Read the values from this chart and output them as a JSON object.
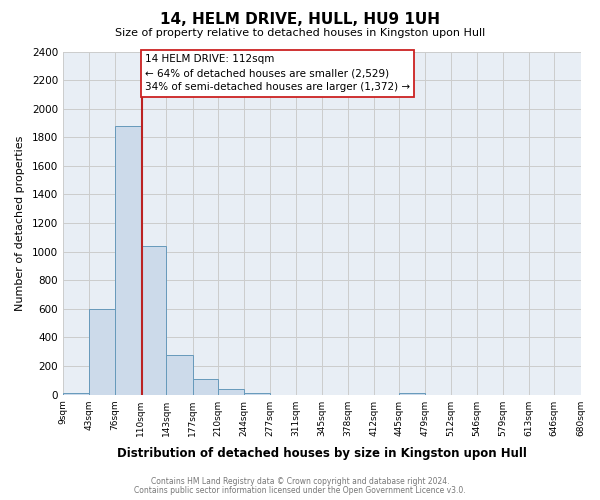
{
  "title": "14, HELM DRIVE, HULL, HU9 1UH",
  "subtitle": "Size of property relative to detached houses in Kingston upon Hull",
  "xlabel": "Distribution of detached houses by size in Kingston upon Hull",
  "ylabel": "Number of detached properties",
  "bin_labels": [
    "9sqm",
    "43sqm",
    "76sqm",
    "110sqm",
    "143sqm",
    "177sqm",
    "210sqm",
    "244sqm",
    "277sqm",
    "311sqm",
    "345sqm",
    "378sqm",
    "412sqm",
    "445sqm",
    "479sqm",
    "512sqm",
    "546sqm",
    "579sqm",
    "613sqm",
    "646sqm",
    "680sqm"
  ],
  "bin_edges": [
    9,
    43,
    76,
    110,
    143,
    177,
    210,
    244,
    277,
    311,
    345,
    378,
    412,
    445,
    479,
    512,
    546,
    579,
    613,
    646,
    680
  ],
  "bin_values": [
    15,
    600,
    1880,
    1040,
    275,
    110,
    40,
    15,
    0,
    0,
    0,
    0,
    0,
    15,
    0,
    0,
    0,
    0,
    0,
    0
  ],
  "bar_color": "#ccdaea",
  "bar_edge_color": "#6699bb",
  "vline_color": "#bb2222",
  "vline_x": 112,
  "annotation_title": "14 HELM DRIVE: 112sqm",
  "annotation_line1": "← 64% of detached houses are smaller (2,529)",
  "annotation_line2": "34% of semi-detached houses are larger (1,372) →",
  "annotation_box_color": "#ffffff",
  "annotation_box_edge": "#cc2222",
  "ylim": [
    0,
    2400
  ],
  "yticks": [
    0,
    200,
    400,
    600,
    800,
    1000,
    1200,
    1400,
    1600,
    1800,
    2000,
    2200,
    2400
  ],
  "grid_color": "#cccccc",
  "plot_bg_color": "#e8eef5",
  "fig_bg_color": "#ffffff",
  "footer_line1": "Contains HM Land Registry data © Crown copyright and database right 2024.",
  "footer_line2": "Contains public sector information licensed under the Open Government Licence v3.0."
}
